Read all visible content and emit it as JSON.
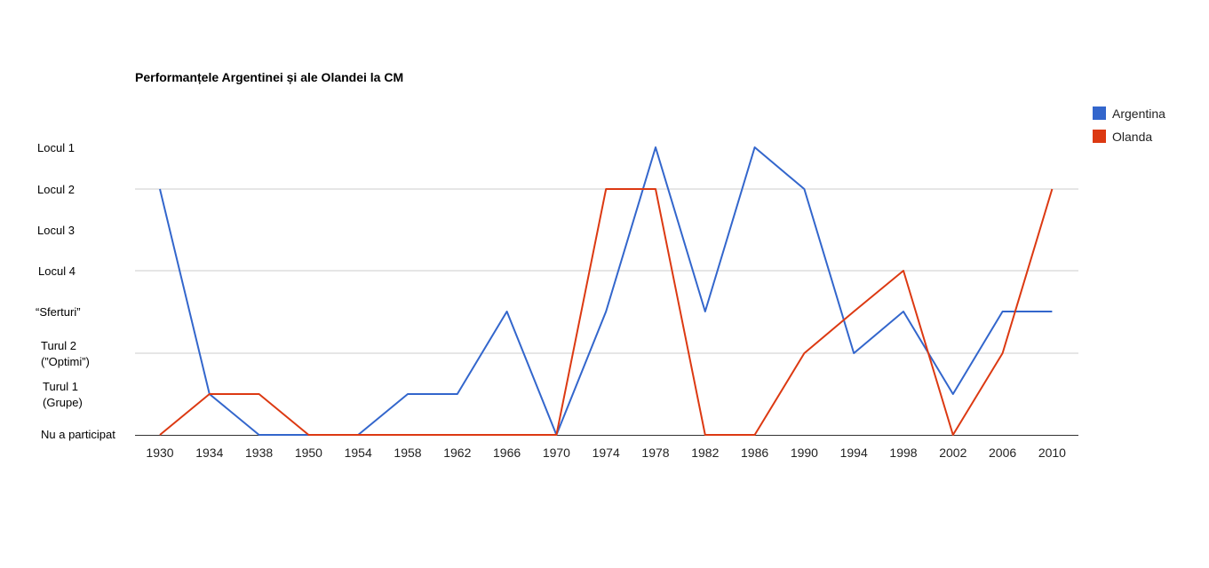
{
  "chart_data": {
    "type": "line",
    "title": "Performanțele Argentinei și ale Olandei la CM",
    "x": [
      "1930",
      "1934",
      "1938",
      "1950",
      "1954",
      "1958",
      "1962",
      "1966",
      "1970",
      "1974",
      "1978",
      "1982",
      "1986",
      "1990",
      "1994",
      "1998",
      "2002",
      "2006",
      "2010"
    ],
    "y_levels": [
      {
        "value": 0,
        "label": [
          "Nu a participat"
        ]
      },
      {
        "value": 1,
        "label": [
          "Turul 1",
          "(Grupe)"
        ]
      },
      {
        "value": 2,
        "label": [
          "Turul 2",
          "(”Optimi”)"
        ]
      },
      {
        "value": 3,
        "label": [
          "“Sferturi”"
        ]
      },
      {
        "value": 4,
        "label": [
          "Locul 4"
        ]
      },
      {
        "value": 5,
        "label": [
          "Locul 3"
        ]
      },
      {
        "value": 6,
        "label": [
          "Locul 2"
        ]
      },
      {
        "value": 7,
        "label": [
          "Locul 1"
        ]
      }
    ],
    "ylim": [
      0,
      7
    ],
    "gridlines_at": [
      2,
      4,
      6
    ],
    "series": [
      {
        "name": "Argentina",
        "color": "#3366cc",
        "values": [
          6,
          1,
          0,
          0,
          0,
          1,
          1,
          3,
          0,
          3,
          7,
          3,
          7,
          6,
          2,
          3,
          1,
          3,
          3
        ]
      },
      {
        "name": "Olanda",
        "color": "#dc3912",
        "values": [
          0,
          1,
          1,
          0,
          0,
          0,
          0,
          0,
          0,
          6,
          6,
          0,
          0,
          2,
          3,
          4,
          0,
          2,
          6
        ]
      }
    ],
    "legend_position": "right",
    "grid": true
  }
}
